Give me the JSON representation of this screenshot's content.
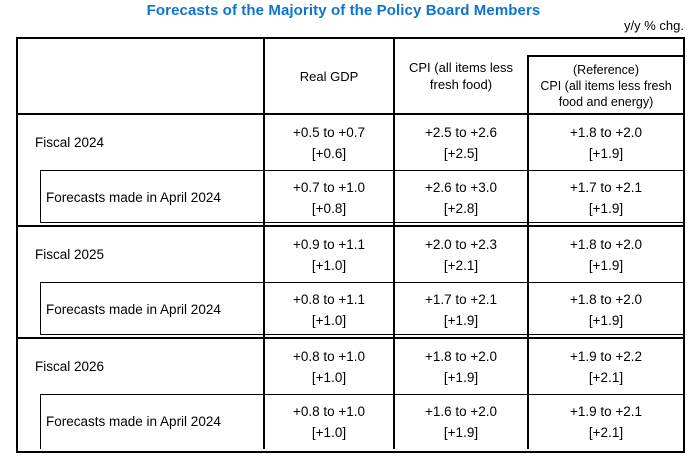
{
  "colors": {
    "title_blue": "#0e74d1",
    "border": "#000000",
    "background": "#ffffff"
  },
  "title": "Forecasts of the Majority of the Policy Board Members",
  "unit_note": "y/y % chg.",
  "table": {
    "header": {
      "row_label": "",
      "real_gdp": "Real GDP",
      "cpi": "CPI (all items less fresh food)",
      "cpi_reference_title": "(Reference)",
      "cpi_reference_subtitle": "CPI (all items less fresh food and energy)"
    },
    "groups": [
      {
        "main": {
          "label": "Fiscal 2024",
          "gdp_range": "+0.5 to +0.7",
          "gdp_median": "[+0.6]",
          "cpi_range": "+2.5 to +2.6",
          "cpi_median": "[+2.5]",
          "ref_range": "+1.8 to +2.0",
          "ref_median": "[+1.9]"
        },
        "sub": {
          "label": "Forecasts made in April 2024",
          "gdp_range": "+0.7 to +1.0",
          "gdp_median": "[+0.8]",
          "cpi_range": "+2.6 to +3.0",
          "cpi_median": "[+2.8]",
          "ref_range": "+1.7 to +2.1",
          "ref_median": "[+1.9]"
        }
      },
      {
        "main": {
          "label": "Fiscal 2025",
          "gdp_range": "+0.9 to +1.1",
          "gdp_median": "[+1.0]",
          "cpi_range": "+2.0 to +2.3",
          "cpi_median": "[+2.1]",
          "ref_range": "+1.8 to +2.0",
          "ref_median": "[+1.9]"
        },
        "sub": {
          "label": "Forecasts made in April 2024",
          "gdp_range": "+0.8 to +1.1",
          "gdp_median": "[+1.0]",
          "cpi_range": "+1.7 to +2.1",
          "cpi_median": "[+1.9]",
          "ref_range": "+1.8 to +2.0",
          "ref_median": "[+1.9]"
        }
      },
      {
        "main": {
          "label": "Fiscal 2026",
          "gdp_range": "+0.8 to +1.0",
          "gdp_median": "[+1.0]",
          "cpi_range": "+1.8 to +2.0",
          "cpi_median": "[+1.9]",
          "ref_range": "+1.9 to +2.2",
          "ref_median": "[+2.1]"
        },
        "sub": {
          "label": "Forecasts made in April 2024",
          "gdp_range": "+0.8 to +1.0",
          "gdp_median": "[+1.0]",
          "cpi_range": "+1.6 to +2.0",
          "cpi_median": "[+1.9]",
          "ref_range": "+1.9 to +2.1",
          "ref_median": "[+2.1]"
        }
      }
    ]
  }
}
